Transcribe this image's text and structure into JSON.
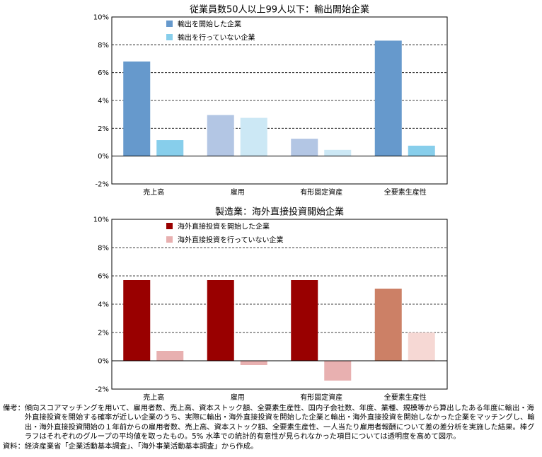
{
  "chart_data": [
    {
      "type": "bar",
      "title": "従業員数50人以上99人以下：輸出開始企業",
      "categories": [
        "売上高",
        "雇用",
        "有形固定資産",
        "全要素生産性"
      ],
      "series": [
        {
          "name": "輸出を開始した企業",
          "values": [
            6.8,
            2.95,
            1.25,
            8.3
          ],
          "colors": [
            "#6699cc",
            "#b3c6e4",
            "#b3c6e4",
            "#6699cc"
          ]
        },
        {
          "name": "輸出を行っていない企業",
          "values": [
            1.15,
            2.75,
            0.45,
            0.75
          ],
          "colors": [
            "#87ceeb",
            "#cce8f5",
            "#cce8f5",
            "#87ceeb"
          ]
        }
      ],
      "legend_colors": [
        "#6699cc",
        "#87ceeb"
      ],
      "ylim": [
        -2,
        10
      ],
      "yticks": [
        "10%",
        "8%",
        "6%",
        "4%",
        "2%",
        "0%",
        "-2%"
      ],
      "ytick_values": [
        10,
        8,
        6,
        4,
        2,
        0,
        -2
      ],
      "grid": "dashed",
      "legend_position": "top-left"
    },
    {
      "type": "bar",
      "title": "製造業：海外直接投資開始企業",
      "categories": [
        "売上高",
        "雇用",
        "有形固定資産",
        "全要素生産性"
      ],
      "series": [
        {
          "name": "海外直接投資を開始した企業",
          "values": [
            5.7,
            5.7,
            5.7,
            5.1
          ],
          "colors": [
            "#990000",
            "#990000",
            "#990000",
            "#cc8066"
          ]
        },
        {
          "name": "海外直接投資を行っていない企業",
          "values": [
            0.7,
            -0.3,
            -1.4,
            2.0
          ],
          "colors": [
            "#e8b0b0",
            "#e8b0b0",
            "#e8b0b0",
            "#f6d8d4"
          ]
        }
      ],
      "legend_colors": [
        "#990000",
        "#e8b0b0"
      ],
      "ylim": [
        -2,
        10
      ],
      "yticks": [
        "10%",
        "8%",
        "6%",
        "4%",
        "2%",
        "0%",
        "-2%"
      ],
      "ytick_values": [
        10,
        8,
        6,
        4,
        2,
        0,
        -2
      ],
      "grid": "dashed",
      "legend_position": "top-left"
    }
  ],
  "notes": {
    "remarks_label": "備考：",
    "remarks_text": "傾向スコアマッチングを用いて、雇用者数、売上高、資本ストック額、全要素生産性、国内子会社数、年度、業種、規模等から算出したある年度に輸出・海外直接投資を開始する確率が近しい企業のうち、実際に輸出・海外直接投資を開始した企業と輸出・海外直接投資を開始しなかった企業をマッチングし、輸出・海外直接投資開始の１年前からの雇用者数、売上高、資本ストック額、全要素生産性、一人当たり雇用者報酬について差の差分析を実施した結果。棒グラフはそれぞれのグループの平均値を取ったもの。5% 水準での統計的有意性が見られなかった項目については透明度を高めて図示。",
    "source_label": "資料：",
    "source_text": "経済産業省「企業活動基本調査」、「海外事業活動基本調査」から作成。"
  }
}
